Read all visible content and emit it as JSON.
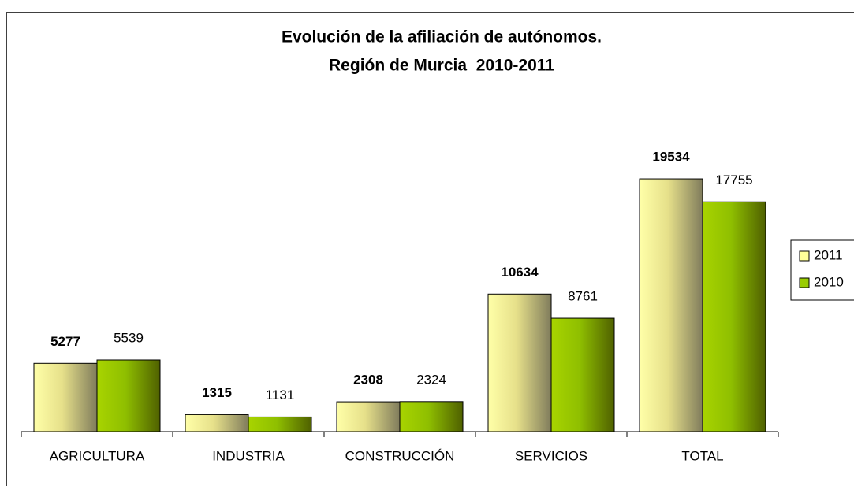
{
  "chart_data": {
    "type": "bar",
    "title": [
      "Evolución de la afiliación de autónomos.",
      "Región de Murcia  2010-2011"
    ],
    "categories": [
      "AGRICULTURA",
      "INDUSTRIA",
      "CONSTRUCCIÓN",
      "SERVICIOS",
      "TOTAL"
    ],
    "series": [
      {
        "name": "2011",
        "color": "#ffff99",
        "values": [
          5277,
          1315,
          2308,
          10634,
          19534
        ]
      },
      {
        "name": "2010",
        "color": "#99cc00",
        "values": [
          5539,
          1131,
          2324,
          8761,
          17755
        ]
      }
    ],
    "legend": "right"
  }
}
